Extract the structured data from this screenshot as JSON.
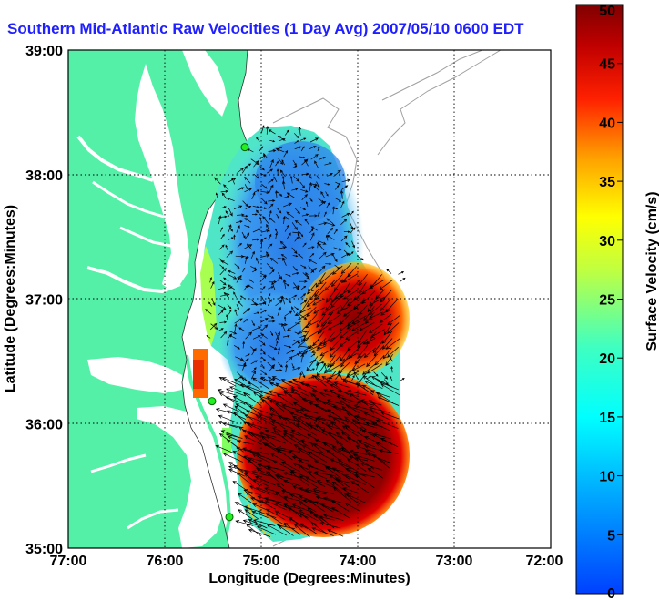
{
  "title": "Southern Mid-Atlantic Raw Velocities (1 Day Avg) 2007/05/10 0600 EDT",
  "map": {
    "x_label": "Longitude (Degrees:Minutes)",
    "y_label": "Latitude (Degrees:Minutes)",
    "x_ticks": [
      "77:00",
      "76:00",
      "75:00",
      "74:00",
      "73:00",
      "72:00"
    ],
    "y_ticks": [
      "39:00",
      "38:00",
      "37:00",
      "36:00",
      "35:00"
    ],
    "x_range": [
      -77,
      -72
    ],
    "y_range": [
      35,
      39
    ],
    "land_color": "#55f0a8",
    "stations": [
      {
        "lon": -75.17,
        "lat": 38.22
      },
      {
        "lon": -75.51,
        "lat": 36.18
      },
      {
        "lon": -75.33,
        "lat": 35.25
      }
    ]
  },
  "colorbar": {
    "label": "Surface Velocity (cm/s)",
    "ticks": [
      "50",
      "45",
      "40",
      "35",
      "30",
      "25",
      "20",
      "15",
      "10",
      "5",
      "0"
    ],
    "min": 0,
    "max": 50
  }
}
